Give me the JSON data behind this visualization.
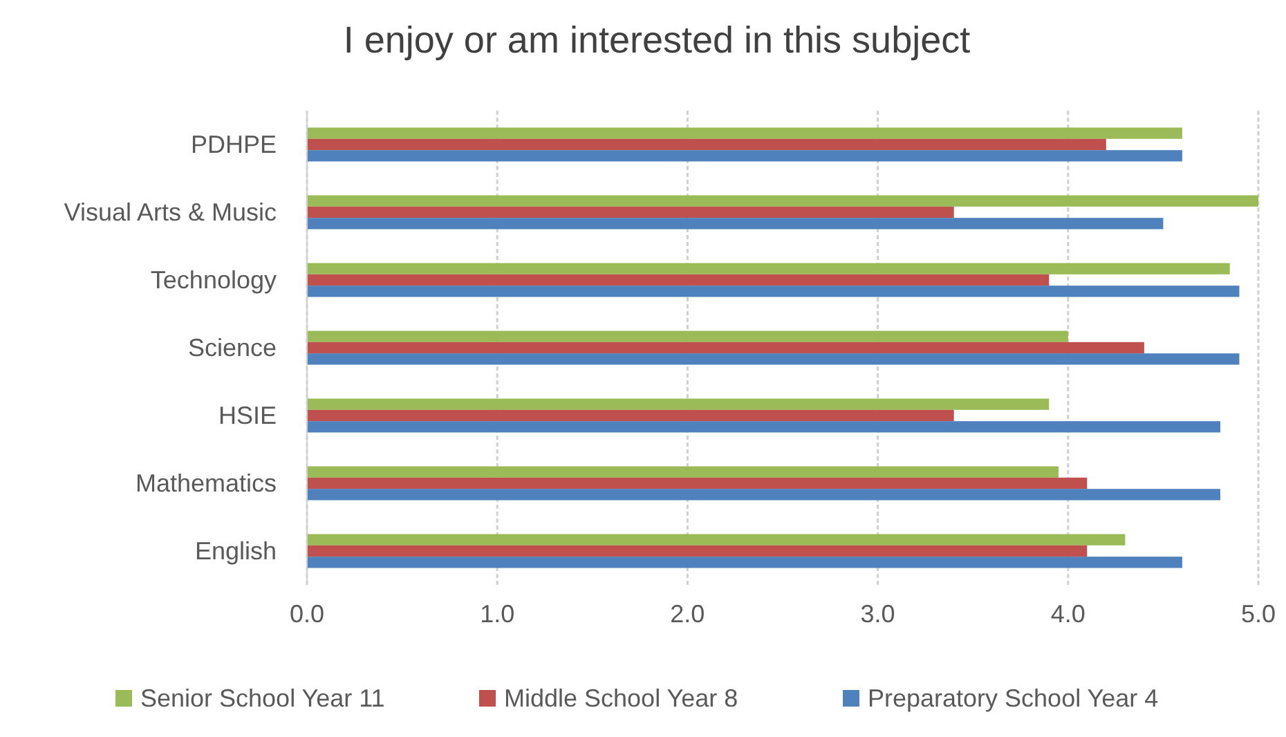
{
  "chart_data": {
    "type": "bar",
    "orientation": "horizontal",
    "title": "I enjoy or am interested in this subject",
    "categories": [
      "PDHPE",
      "Visual Arts & Music",
      "Technology",
      "Science",
      "HSIE",
      "Mathematics",
      "English"
    ],
    "series": [
      {
        "name": "Senior School Year 11",
        "color": "#9bbb59",
        "values": [
          4.6,
          5.0,
          4.85,
          4.0,
          3.9,
          3.95,
          4.3
        ]
      },
      {
        "name": "Middle School Year 8",
        "color": "#c0504d",
        "values": [
          4.2,
          3.4,
          3.9,
          4.4,
          3.4,
          4.1,
          4.1
        ]
      },
      {
        "name": "Preparatory School Year 4",
        "color": "#4f81bd",
        "values": [
          4.6,
          4.5,
          4.9,
          4.9,
          4.8,
          4.8,
          4.6
        ]
      }
    ],
    "xlim": [
      0,
      5
    ],
    "xticks": [
      {
        "value": 0,
        "label": "0.0"
      },
      {
        "value": 1,
        "label": "1.0"
      },
      {
        "value": 2,
        "label": "2.0"
      },
      {
        "value": 3,
        "label": "3.0"
      },
      {
        "value": 4,
        "label": "4.0"
      },
      {
        "value": 5,
        "label": "5.0"
      }
    ],
    "grid": "x",
    "legend": "bottom"
  }
}
